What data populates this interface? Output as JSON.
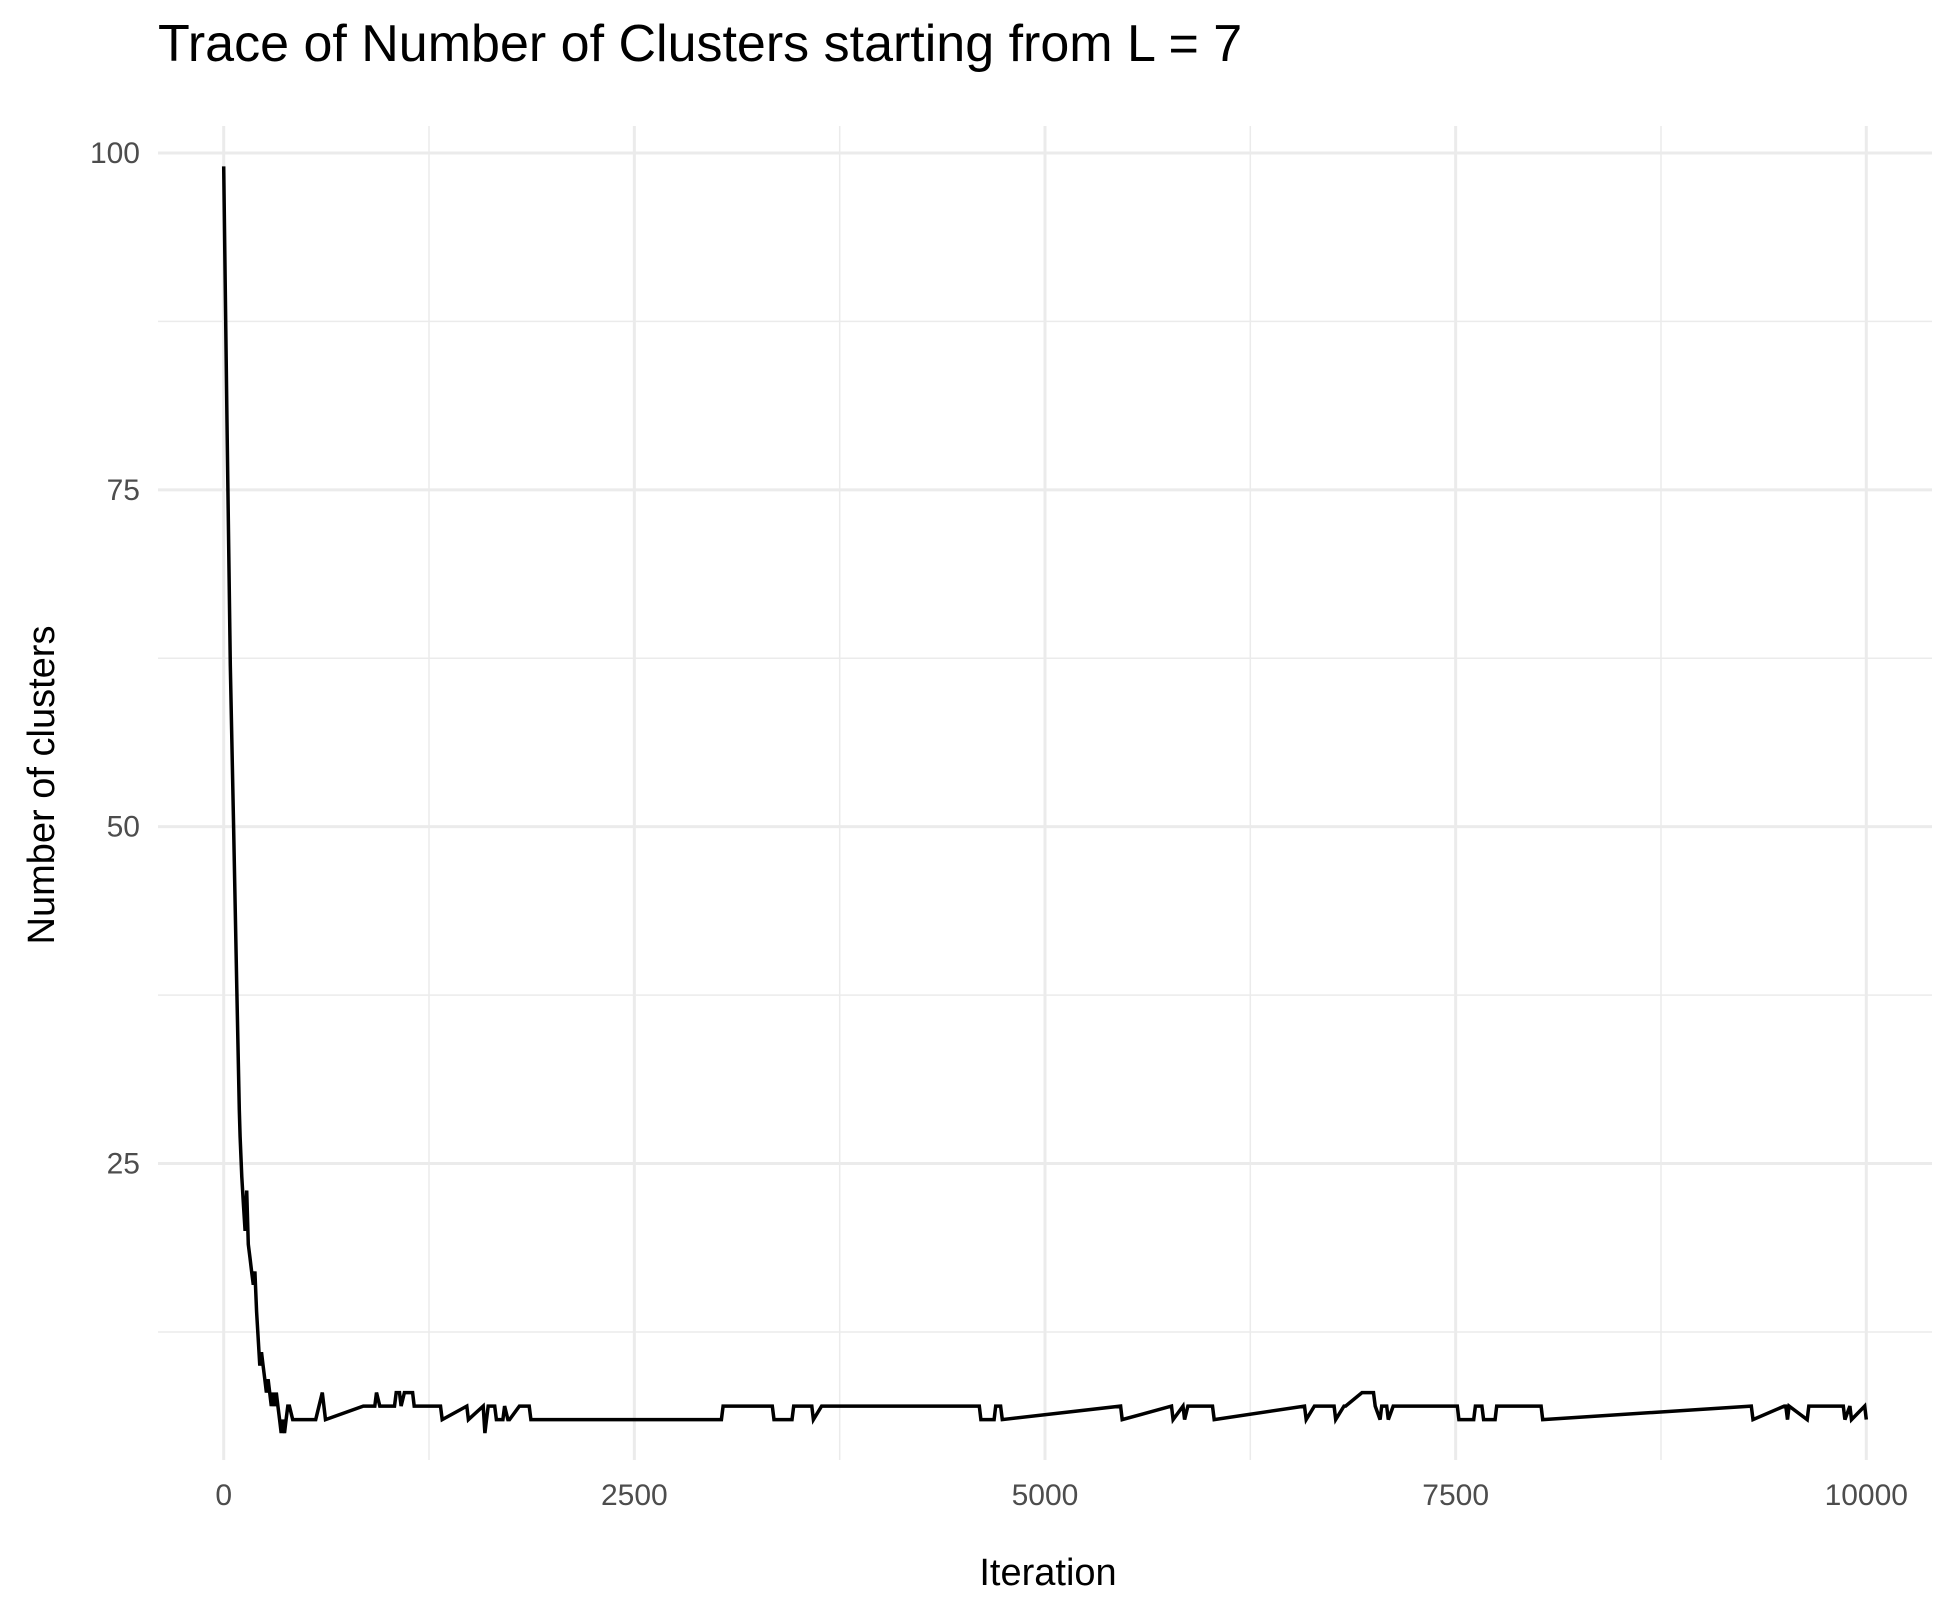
{
  "chart_data": {
    "type": "line",
    "title": "Trace of Number of Clusters starting from L = 7",
    "xlabel": "Iteration",
    "ylabel": "Number of clusters",
    "xlim": [
      -400,
      10400
    ],
    "ylim": [
      3,
      102
    ],
    "x_ticks": [
      0,
      2500,
      5000,
      7500,
      10000
    ],
    "x_tick_labels": [
      "0",
      "2500",
      "5000",
      "7500",
      "10000"
    ],
    "y_ticks": [
      25,
      50,
      75,
      100
    ],
    "y_tick_labels": [
      "25",
      "50",
      "75",
      "100"
    ],
    "x_minor_ticks": [
      1250,
      3750,
      6250,
      8750
    ],
    "y_minor_ticks": [
      12.5,
      37.5,
      62.5,
      87.5
    ],
    "grid": true,
    "background": "#ffffff",
    "grid_color": "#ebebeb",
    "line_color": "#000000",
    "series": [
      {
        "name": "",
        "x": [
          0,
          20,
          40,
          60,
          80,
          95,
          100,
          110,
          120,
          130,
          140,
          150,
          160,
          170,
          180,
          190,
          200,
          210,
          220,
          230,
          240,
          250,
          260,
          270,
          280,
          290,
          300,
          310,
          320,
          330,
          340,
          350,
          360,
          370,
          380,
          390,
          400,
          420,
          440,
          560,
          580,
          600,
          610,
          620,
          850,
          860,
          920,
          930,
          950,
          960,
          1040,
          1050,
          1070,
          1080,
          1100,
          1150,
          1160,
          1320,
          1330,
          1480,
          1490,
          1580,
          1590,
          1600,
          1610,
          1650,
          1660,
          1700,
          1710,
          1730,
          1740,
          1800,
          1810,
          1860,
          1870,
          3030,
          3040,
          3340,
          3350,
          3460,
          3470,
          3580,
          3590,
          3640,
          3650,
          4600,
          4610,
          4690,
          4700,
          4730,
          4740,
          5460,
          5470,
          5770,
          5780,
          5840,
          5850,
          5870,
          5880,
          6020,
          6030,
          6580,
          6590,
          6640,
          6650,
          6760,
          6770,
          6820,
          6830,
          6930,
          6940,
          7000,
          7010,
          7040,
          7050,
          7080,
          7090,
          7120,
          7130,
          7510,
          7520,
          7610,
          7620,
          7660,
          7670,
          7740,
          7750,
          8020,
          8030,
          9300,
          9310,
          9500,
          9510,
          9520,
          9530,
          9640,
          9650,
          9860,
          9870,
          9900,
          9910,
          9990,
          10000
        ],
        "y": [
          99,
          80,
          62,
          50,
          38,
          29,
          27,
          24,
          22,
          20,
          23,
          19,
          18,
          17,
          16,
          17,
          14,
          12,
          10,
          11,
          10,
          9,
          8,
          9,
          8,
          7,
          8,
          7,
          8,
          7,
          6,
          5,
          6,
          5,
          6,
          7,
          7,
          6,
          6,
          6,
          7,
          8,
          7,
          6,
          7,
          7,
          7,
          8,
          7,
          7,
          7,
          8,
          8,
          7,
          8,
          8,
          7,
          7,
          6,
          7,
          6,
          7,
          5,
          6,
          7,
          7,
          6,
          6,
          7,
          6,
          6,
          7,
          7,
          7,
          6,
          6,
          7,
          7,
          6,
          6,
          7,
          7,
          6,
          7,
          7,
          7,
          6,
          6,
          7,
          7,
          6,
          7,
          6,
          7,
          6,
          7,
          6,
          7,
          7,
          7,
          6,
          7,
          6,
          7,
          7,
          7,
          6,
          7,
          7,
          8,
          8,
          8,
          7,
          6,
          7,
          7,
          6,
          7,
          7,
          7,
          6,
          6,
          7,
          7,
          6,
          6,
          7,
          7,
          6,
          7,
          6,
          7,
          7,
          6,
          7,
          6,
          7,
          7,
          6,
          7,
          6,
          7,
          6
        ]
      }
    ]
  }
}
